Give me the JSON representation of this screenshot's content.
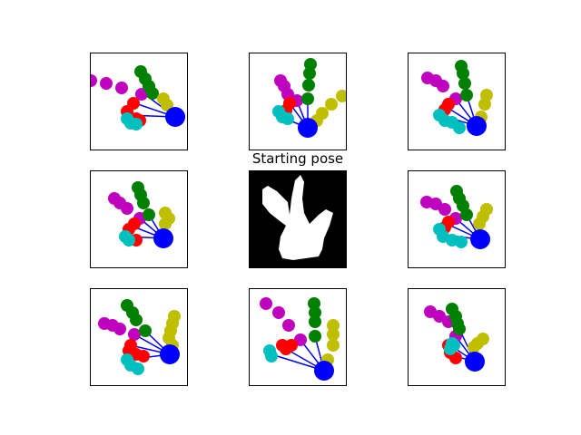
{
  "center_title": "Starting pose",
  "colors": {
    "palm": "#0000ff",
    "links": "#0000ff",
    "fingers": [
      "#bf00bf",
      "#ff0000",
      "#00bfbf",
      "#008000",
      "#bfbf00"
    ],
    "silhouette_bg": "#000000",
    "silhouette_fg": "#ffffff"
  },
  "layout": {
    "columns": 3,
    "rows": 3,
    "center_panel": "silhouette"
  }
}
